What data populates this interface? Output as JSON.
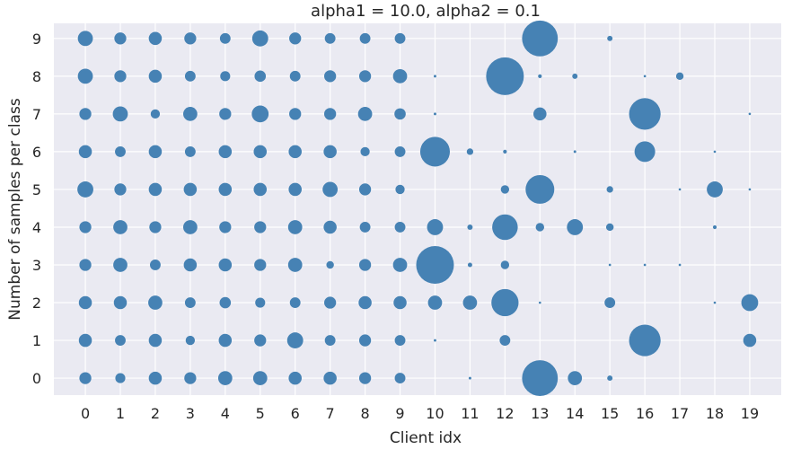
{
  "chart_data": {
    "type": "scatter",
    "title": "alpha1 = 10.0, alpha2 = 0.1",
    "xlabel": "Client idx",
    "ylabel": "Number of samples per class",
    "x_ticks": [
      "0",
      "1",
      "2",
      "3",
      "4",
      "5",
      "6",
      "7",
      "8",
      "9",
      "10",
      "11",
      "12",
      "13",
      "14",
      "15",
      "16",
      "17",
      "18",
      "19"
    ],
    "y_ticks": [
      "0",
      "1",
      "2",
      "3",
      "4",
      "5",
      "6",
      "7",
      "8",
      "9"
    ],
    "xlim": [
      -0.9,
      19.9
    ],
    "ylim": [
      -0.45,
      9.4
    ],
    "grid": true,
    "marker_color": "#4682b4",
    "background_color": "#eaeaf2",
    "size_encoding": "relative marker area",
    "points": [
      {
        "client": 0,
        "class": 9,
        "size": 0.16
      },
      {
        "client": 0,
        "class": 8,
        "size": 0.16
      },
      {
        "client": 0,
        "class": 7,
        "size": 0.1
      },
      {
        "client": 0,
        "class": 6,
        "size": 0.12
      },
      {
        "client": 0,
        "class": 5,
        "size": 0.18
      },
      {
        "client": 0,
        "class": 4,
        "size": 0.1
      },
      {
        "client": 0,
        "class": 3,
        "size": 0.1
      },
      {
        "client": 0,
        "class": 2,
        "size": 0.12
      },
      {
        "client": 0,
        "class": 1,
        "size": 0.12
      },
      {
        "client": 0,
        "class": 0,
        "size": 0.1
      },
      {
        "client": 1,
        "class": 9,
        "size": 0.1
      },
      {
        "client": 1,
        "class": 8,
        "size": 0.1
      },
      {
        "client": 1,
        "class": 7,
        "size": 0.16
      },
      {
        "client": 1,
        "class": 6,
        "size": 0.08
      },
      {
        "client": 1,
        "class": 5,
        "size": 0.1
      },
      {
        "client": 1,
        "class": 4,
        "size": 0.14
      },
      {
        "client": 1,
        "class": 3,
        "size": 0.14
      },
      {
        "client": 1,
        "class": 2,
        "size": 0.12
      },
      {
        "client": 1,
        "class": 1,
        "size": 0.08
      },
      {
        "client": 1,
        "class": 0,
        "size": 0.07
      },
      {
        "client": 2,
        "class": 9,
        "size": 0.12
      },
      {
        "client": 2,
        "class": 8,
        "size": 0.12
      },
      {
        "client": 2,
        "class": 7,
        "size": 0.06
      },
      {
        "client": 2,
        "class": 6,
        "size": 0.12
      },
      {
        "client": 2,
        "class": 5,
        "size": 0.12
      },
      {
        "client": 2,
        "class": 4,
        "size": 0.1
      },
      {
        "client": 2,
        "class": 3,
        "size": 0.08
      },
      {
        "client": 2,
        "class": 2,
        "size": 0.14
      },
      {
        "client": 2,
        "class": 1,
        "size": 0.12
      },
      {
        "client": 2,
        "class": 0,
        "size": 0.12
      },
      {
        "client": 3,
        "class": 9,
        "size": 0.1
      },
      {
        "client": 3,
        "class": 8,
        "size": 0.08
      },
      {
        "client": 3,
        "class": 7,
        "size": 0.14
      },
      {
        "client": 3,
        "class": 6,
        "size": 0.08
      },
      {
        "client": 3,
        "class": 5,
        "size": 0.12
      },
      {
        "client": 3,
        "class": 4,
        "size": 0.14
      },
      {
        "client": 3,
        "class": 3,
        "size": 0.12
      },
      {
        "client": 3,
        "class": 2,
        "size": 0.08
      },
      {
        "client": 3,
        "class": 1,
        "size": 0.06
      },
      {
        "client": 3,
        "class": 0,
        "size": 0.1
      },
      {
        "client": 4,
        "class": 9,
        "size": 0.08
      },
      {
        "client": 4,
        "class": 8,
        "size": 0.07
      },
      {
        "client": 4,
        "class": 7,
        "size": 0.1
      },
      {
        "client": 4,
        "class": 6,
        "size": 0.12
      },
      {
        "client": 4,
        "class": 5,
        "size": 0.12
      },
      {
        "client": 4,
        "class": 4,
        "size": 0.1
      },
      {
        "client": 4,
        "class": 3,
        "size": 0.12
      },
      {
        "client": 4,
        "class": 2,
        "size": 0.09
      },
      {
        "client": 4,
        "class": 1,
        "size": 0.12
      },
      {
        "client": 4,
        "class": 0,
        "size": 0.14
      },
      {
        "client": 5,
        "class": 9,
        "size": 0.18
      },
      {
        "client": 5,
        "class": 8,
        "size": 0.09
      },
      {
        "client": 5,
        "class": 7,
        "size": 0.2
      },
      {
        "client": 5,
        "class": 6,
        "size": 0.12
      },
      {
        "client": 5,
        "class": 5,
        "size": 0.12
      },
      {
        "client": 5,
        "class": 4,
        "size": 0.1
      },
      {
        "client": 5,
        "class": 3,
        "size": 0.1
      },
      {
        "client": 5,
        "class": 2,
        "size": 0.07
      },
      {
        "client": 5,
        "class": 1,
        "size": 0.1
      },
      {
        "client": 5,
        "class": 0,
        "size": 0.14
      },
      {
        "client": 6,
        "class": 9,
        "size": 0.1
      },
      {
        "client": 6,
        "class": 8,
        "size": 0.08
      },
      {
        "client": 6,
        "class": 7,
        "size": 0.1
      },
      {
        "client": 6,
        "class": 6,
        "size": 0.12
      },
      {
        "client": 6,
        "class": 5,
        "size": 0.12
      },
      {
        "client": 6,
        "class": 4,
        "size": 0.14
      },
      {
        "client": 6,
        "class": 3,
        "size": 0.14
      },
      {
        "client": 6,
        "class": 2,
        "size": 0.08
      },
      {
        "client": 6,
        "class": 1,
        "size": 0.18
      },
      {
        "client": 6,
        "class": 0,
        "size": 0.12
      },
      {
        "client": 7,
        "class": 9,
        "size": 0.08
      },
      {
        "client": 7,
        "class": 8,
        "size": 0.1
      },
      {
        "client": 7,
        "class": 7,
        "size": 0.1
      },
      {
        "client": 7,
        "class": 6,
        "size": 0.12
      },
      {
        "client": 7,
        "class": 5,
        "size": 0.16
      },
      {
        "client": 7,
        "class": 4,
        "size": 0.12
      },
      {
        "client": 7,
        "class": 3,
        "size": 0.04
      },
      {
        "client": 7,
        "class": 2,
        "size": 0.1
      },
      {
        "client": 7,
        "class": 1,
        "size": 0.08
      },
      {
        "client": 7,
        "class": 0,
        "size": 0.12
      },
      {
        "client": 8,
        "class": 9,
        "size": 0.08
      },
      {
        "client": 8,
        "class": 8,
        "size": 0.1
      },
      {
        "client": 8,
        "class": 7,
        "size": 0.14
      },
      {
        "client": 8,
        "class": 6,
        "size": 0.06
      },
      {
        "client": 8,
        "class": 5,
        "size": 0.1
      },
      {
        "client": 8,
        "class": 4,
        "size": 0.08
      },
      {
        "client": 8,
        "class": 3,
        "size": 0.1
      },
      {
        "client": 8,
        "class": 2,
        "size": 0.12
      },
      {
        "client": 8,
        "class": 1,
        "size": 0.1
      },
      {
        "client": 8,
        "class": 0,
        "size": 0.1
      },
      {
        "client": 9,
        "class": 9,
        "size": 0.08
      },
      {
        "client": 9,
        "class": 8,
        "size": 0.14
      },
      {
        "client": 9,
        "class": 7,
        "size": 0.09
      },
      {
        "client": 9,
        "class": 6,
        "size": 0.08
      },
      {
        "client": 9,
        "class": 5,
        "size": 0.06
      },
      {
        "client": 9,
        "class": 4,
        "size": 0.08
      },
      {
        "client": 9,
        "class": 3,
        "size": 0.14
      },
      {
        "client": 9,
        "class": 2,
        "size": 0.12
      },
      {
        "client": 9,
        "class": 1,
        "size": 0.08
      },
      {
        "client": 9,
        "class": 0,
        "size": 0.08
      },
      {
        "client": 10,
        "class": 8,
        "size": 0.005
      },
      {
        "client": 10,
        "class": 7,
        "size": 0.005
      },
      {
        "client": 10,
        "class": 6,
        "size": 0.62
      },
      {
        "client": 10,
        "class": 4,
        "size": 0.18
      },
      {
        "client": 10,
        "class": 3,
        "size": 1.0
      },
      {
        "client": 10,
        "class": 2,
        "size": 0.14
      },
      {
        "client": 10,
        "class": 1,
        "size": 0.005
      },
      {
        "client": 11,
        "class": 6,
        "size": 0.03
      },
      {
        "client": 11,
        "class": 4,
        "size": 0.02
      },
      {
        "client": 11,
        "class": 3,
        "size": 0.014
      },
      {
        "client": 11,
        "class": 2,
        "size": 0.14
      },
      {
        "client": 11,
        "class": 0,
        "size": 0.005
      },
      {
        "client": 12,
        "class": 8,
        "size": 1.0
      },
      {
        "client": 12,
        "class": 6,
        "size": 0.01
      },
      {
        "client": 12,
        "class": 5,
        "size": 0.05
      },
      {
        "client": 12,
        "class": 4,
        "size": 0.46
      },
      {
        "client": 12,
        "class": 3,
        "size": 0.05
      },
      {
        "client": 12,
        "class": 2,
        "size": 0.52
      },
      {
        "client": 12,
        "class": 1,
        "size": 0.08
      },
      {
        "client": 13,
        "class": 9,
        "size": 0.9
      },
      {
        "client": 13,
        "class": 8,
        "size": 0.01
      },
      {
        "client": 13,
        "class": 7,
        "size": 0.12
      },
      {
        "client": 13,
        "class": 5,
        "size": 0.58
      },
      {
        "client": 13,
        "class": 4,
        "size": 0.05
      },
      {
        "client": 13,
        "class": 2,
        "size": 0.004
      },
      {
        "client": 13,
        "class": 0,
        "size": 0.9
      },
      {
        "client": 14,
        "class": 8,
        "size": 0.02
      },
      {
        "client": 14,
        "class": 6,
        "size": 0.005
      },
      {
        "client": 14,
        "class": 4,
        "size": 0.18
      },
      {
        "client": 14,
        "class": 0,
        "size": 0.14
      },
      {
        "client": 15,
        "class": 9,
        "size": 0.02
      },
      {
        "client": 15,
        "class": 5,
        "size": 0.03
      },
      {
        "client": 15,
        "class": 4,
        "size": 0.04
      },
      {
        "client": 15,
        "class": 3,
        "size": 0.004
      },
      {
        "client": 15,
        "class": 2,
        "size": 0.08
      },
      {
        "client": 15,
        "class": 0,
        "size": 0.02
      },
      {
        "client": 16,
        "class": 8,
        "size": 0.004
      },
      {
        "client": 16,
        "class": 7,
        "size": 0.7
      },
      {
        "client": 16,
        "class": 6,
        "size": 0.3
      },
      {
        "client": 16,
        "class": 3,
        "size": 0.004
      },
      {
        "client": 16,
        "class": 1,
        "size": 0.7
      },
      {
        "client": 17,
        "class": 8,
        "size": 0.04
      },
      {
        "client": 17,
        "class": 5,
        "size": 0.004
      },
      {
        "client": 17,
        "class": 3,
        "size": 0.004
      },
      {
        "client": 18,
        "class": 6,
        "size": 0.004
      },
      {
        "client": 18,
        "class": 5,
        "size": 0.18
      },
      {
        "client": 18,
        "class": 4,
        "size": 0.01
      },
      {
        "client": 18,
        "class": 2,
        "size": 0.004
      },
      {
        "client": 19,
        "class": 7,
        "size": 0.004
      },
      {
        "client": 19,
        "class": 5,
        "size": 0.004
      },
      {
        "client": 19,
        "class": 2,
        "size": 0.2
      },
      {
        "client": 19,
        "class": 1,
        "size": 0.12
      }
    ]
  }
}
